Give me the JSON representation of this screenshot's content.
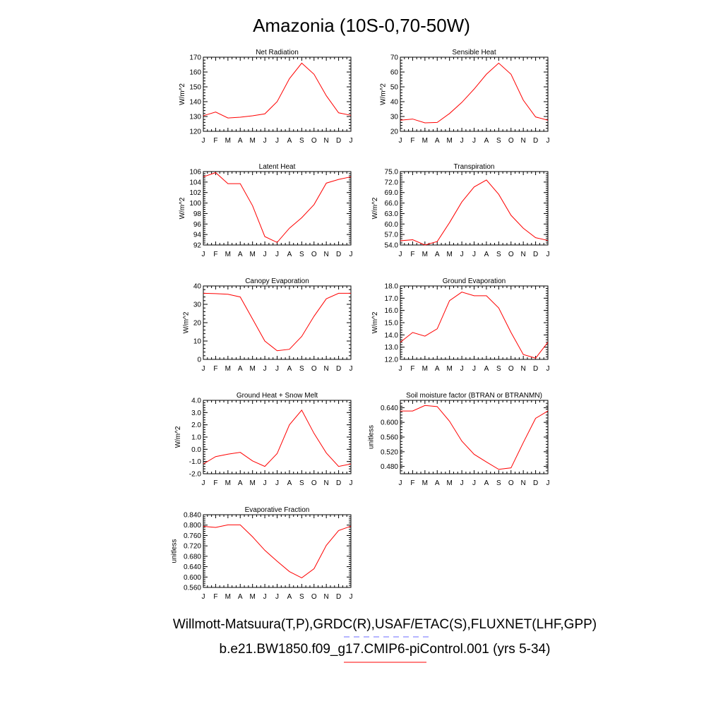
{
  "figure": {
    "title": "Amazonia (10S-0,70-50W)",
    "legend": {
      "obs_label": "Willmott-Matsuura(T,P),GRDC(R),USAF/ETAC(S),FLUXNET(LHF,GPP)",
      "obs_color": "#6b6bff",
      "model_label": "b.e21.BW1850.f09_g17.CMIP6-piControl.001 (yrs 5-34)",
      "model_color": "#ff0000"
    }
  },
  "chart_data": [
    {
      "type": "line",
      "title": "Net Radiation",
      "ylabel": "W/m^2",
      "categories": [
        "J",
        "F",
        "M",
        "A",
        "M",
        "J",
        "J",
        "A",
        "S",
        "O",
        "N",
        "D",
        "J"
      ],
      "ylim": [
        120,
        170
      ],
      "yticks": [
        "120",
        "130",
        "140",
        "150",
        "160",
        "170"
      ],
      "series": [
        {
          "color": "#ff0000",
          "values": [
            130.5,
            133,
            129,
            129.5,
            130.5,
            131.8,
            140,
            155.5,
            166,
            158.5,
            144,
            132.5,
            130.8
          ]
        }
      ]
    },
    {
      "type": "line",
      "title": "Sensible Heat",
      "ylabel": "W/m^2",
      "categories": [
        "J",
        "F",
        "M",
        "A",
        "M",
        "J",
        "J",
        "A",
        "S",
        "O",
        "N",
        "D",
        "J"
      ],
      "ylim": [
        20,
        70
      ],
      "yticks": [
        "20",
        "30",
        "40",
        "50",
        "60",
        "70"
      ],
      "series": [
        {
          "color": "#ff0000",
          "values": [
            27.5,
            28.3,
            25.7,
            26,
            32,
            39.5,
            48.5,
            58.5,
            66,
            58.5,
            41,
            29.7,
            27.5
          ]
        }
      ]
    },
    {
      "type": "line",
      "title": "Latent Heat",
      "ylabel": "W/m^2",
      "categories": [
        "J",
        "F",
        "M",
        "A",
        "M",
        "J",
        "J",
        "A",
        "S",
        "O",
        "N",
        "D",
        "J"
      ],
      "ylim": [
        92,
        106
      ],
      "yticks": [
        "92",
        "94",
        "96",
        "98",
        "100",
        "102",
        "104",
        "106"
      ],
      "series": [
        {
          "color": "#ff0000",
          "values": [
            105,
            105.8,
            103.7,
            103.7,
            99.5,
            93.6,
            92.5,
            95.2,
            97.2,
            99.7,
            103.8,
            104.5,
            105
          ]
        }
      ]
    },
    {
      "type": "line",
      "title": "Transpiration",
      "ylabel": "W/m^2",
      "categories": [
        "J",
        "F",
        "M",
        "A",
        "M",
        "J",
        "J",
        "A",
        "S",
        "O",
        "N",
        "D",
        "J"
      ],
      "ylim": [
        54,
        75
      ],
      "yticks": [
        "54.0",
        "57.0",
        "60.0",
        "63.0",
        "66.0",
        "69.0",
        "72.0",
        "75.0"
      ],
      "series": [
        {
          "color": "#ff0000",
          "values": [
            55.2,
            55.5,
            54,
            55,
            60.4,
            66.3,
            70.6,
            72.6,
            68.5,
            62.5,
            58.8,
            56.1,
            55.3
          ]
        }
      ]
    },
    {
      "type": "line",
      "title": "Canopy Evaporation",
      "ylabel": "W/m^2",
      "categories": [
        "J",
        "F",
        "M",
        "A",
        "M",
        "J",
        "J",
        "A",
        "S",
        "O",
        "N",
        "D",
        "J"
      ],
      "ylim": [
        0,
        40
      ],
      "yticks": [
        "0",
        "10",
        "20",
        "30",
        "40"
      ],
      "series": [
        {
          "color": "#ff0000",
          "values": [
            36,
            35.8,
            35.5,
            34,
            22,
            10,
            4.7,
            5.5,
            12.5,
            23.5,
            33,
            36,
            36
          ]
        }
      ]
    },
    {
      "type": "line",
      "title": "Ground Evaporation",
      "ylabel": "W/m^2",
      "categories": [
        "J",
        "F",
        "M",
        "A",
        "M",
        "J",
        "J",
        "A",
        "S",
        "O",
        "N",
        "D",
        "J"
      ],
      "ylim": [
        12,
        18
      ],
      "yticks": [
        "12.0",
        "13.0",
        "14.0",
        "15.0",
        "16.0",
        "17.0",
        "18.0"
      ],
      "series": [
        {
          "color": "#ff0000",
          "values": [
            13.4,
            14.2,
            13.9,
            14.5,
            16.8,
            17.5,
            17.2,
            17.2,
            16.2,
            14.2,
            12.4,
            12.1,
            13.4
          ]
        }
      ]
    },
    {
      "type": "line",
      "title": "Ground Heat + Snow Melt",
      "ylabel": "W/m^2",
      "categories": [
        "J",
        "F",
        "M",
        "A",
        "M",
        "J",
        "J",
        "A",
        "S",
        "O",
        "N",
        "D",
        "J"
      ],
      "ylim": [
        -2,
        4
      ],
      "yticks": [
        "-2.0",
        "-1.0",
        "0.0",
        "1.0",
        "2.0",
        "3.0",
        "4.0"
      ],
      "series": [
        {
          "color": "#ff0000",
          "values": [
            -1.2,
            -0.6,
            -0.4,
            -0.25,
            -0.95,
            -1.4,
            -0.35,
            2.0,
            3.2,
            1.3,
            -0.3,
            -1.4,
            -1.2
          ]
        }
      ]
    },
    {
      "type": "line",
      "title": "Soil moisture factor (BTRAN or BTRANMN)",
      "ylabel": "unitless",
      "categories": [
        "J",
        "F",
        "M",
        "A",
        "M",
        "J",
        "J",
        "A",
        "S",
        "O",
        "N",
        "D",
        "J"
      ],
      "ylim": [
        0.46,
        0.66
      ],
      "yticks": [
        "0.480",
        "0.520",
        "0.560",
        "0.600",
        "0.640"
      ],
      "series": [
        {
          "color": "#ff0000",
          "values": [
            0.631,
            0.631,
            0.646,
            0.643,
            0.603,
            0.549,
            0.513,
            0.492,
            0.472,
            0.476,
            0.545,
            0.611,
            0.631
          ]
        }
      ]
    },
    {
      "type": "line",
      "title": "Evaporative Fraction",
      "ylabel": "unitless",
      "categories": [
        "J",
        "F",
        "M",
        "A",
        "M",
        "J",
        "J",
        "A",
        "S",
        "O",
        "N",
        "D",
        "J"
      ],
      "ylim": [
        0.56,
        0.84
      ],
      "yticks": [
        "0.560",
        "0.600",
        "0.640",
        "0.680",
        "0.720",
        "0.760",
        "0.800",
        "0.840"
      ],
      "series": [
        {
          "color": "#ff0000",
          "values": [
            0.795,
            0.791,
            0.801,
            0.801,
            0.755,
            0.703,
            0.661,
            0.621,
            0.597,
            0.632,
            0.722,
            0.779,
            0.796
          ]
        }
      ]
    }
  ]
}
